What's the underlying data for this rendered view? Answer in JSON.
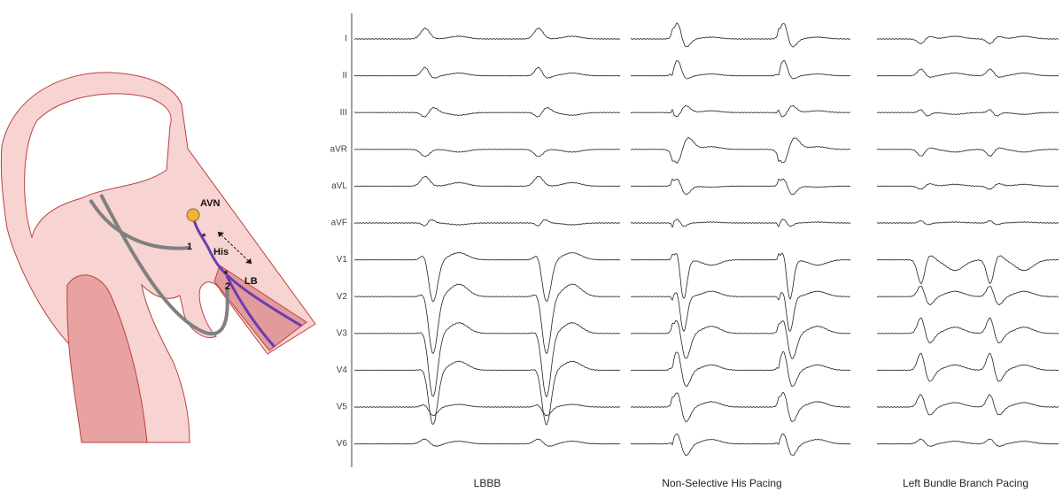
{
  "anatomy": {
    "avn": "AVN",
    "his": "His",
    "lb": "LB",
    "lead_1": "1",
    "lead_2": "2",
    "asterisk_his": "*",
    "asterisk_lb": "*"
  },
  "leads": [
    "I",
    "II",
    "III",
    "aVR",
    "aVL",
    "aVF",
    "V1",
    "V2",
    "V3",
    "V4",
    "V5",
    "V6"
  ],
  "panels": [
    "LBBB",
    "Non-Selective His Pacing",
    "Left Bundle Branch Pacing"
  ]
}
